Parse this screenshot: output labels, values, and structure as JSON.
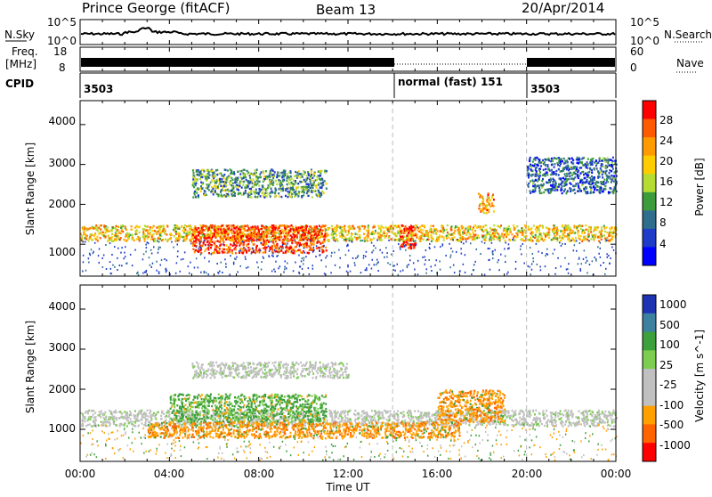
{
  "header": {
    "station": "Prince George (fitACF)",
    "beam": "Beam 13",
    "date": "20/Apr/2014"
  },
  "strips": {
    "nsky_label": "N.Sky",
    "nsearch_label": "N.Search",
    "nsky_ticks": [
      "10^5",
      "10^0"
    ],
    "nsearch_ticks": [
      "10^5",
      "10^0"
    ],
    "freq_label_1": "Freq.",
    "freq_label_2": "[MHz]",
    "freq_ticks": [
      "18",
      "8"
    ],
    "nave_label": "Nave",
    "nave_ticks": [
      "60",
      "0"
    ],
    "cpid_label": "CPID",
    "cpid_segments": [
      {
        "label": "3503",
        "start_hour": 0
      },
      {
        "label": "normal (fast) 151",
        "start_hour": 14
      },
      {
        "label": "3503",
        "start_hour": 20
      }
    ]
  },
  "chart_data": [
    {
      "type": "heatmap",
      "title": "",
      "ylabel": "Slant Range [km]",
      "xlabel": "Time UT",
      "xlim": [
        0,
        24
      ],
      "ylim": [
        200,
        4600
      ],
      "yticks": [
        "1000",
        "2000",
        "3000",
        "4000"
      ],
      "colorbar_label": "Power [dB]",
      "colorbar_ticks": [
        "28",
        "24",
        "20",
        "16",
        "12",
        "8",
        "4"
      ],
      "colorbar_colors": [
        "#ff0000",
        "#ff5a00",
        "#ff9a00",
        "#ffcc00",
        "#b4dc32",
        "#3c9c3c",
        "#2e6e8c",
        "#1e3cc8",
        "#0000ff"
      ],
      "dashed_markers_hours": [
        14,
        20
      ],
      "bands": [
        {
          "range_km": [
            1100,
            1500
          ],
          "hours": [
            0,
            24
          ],
          "level_db": 20
        },
        {
          "range_km": [
            800,
            1500
          ],
          "hours": [
            5,
            11
          ],
          "level_db": 28
        },
        {
          "range_km": [
            900,
            1500
          ],
          "hours": [
            14.3,
            15
          ],
          "level_db": 30
        },
        {
          "range_km": [
            1800,
            2300
          ],
          "hours": [
            17.8,
            18.5
          ],
          "level_db": 22
        },
        {
          "range_km": [
            2200,
            2900
          ],
          "hours": [
            5,
            11
          ],
          "level_db": 12
        },
        {
          "range_km": [
            2300,
            3200
          ],
          "hours": [
            20,
            24
          ],
          "level_db": 8
        }
      ]
    },
    {
      "type": "heatmap",
      "title": "",
      "ylabel": "Slant Range [km]",
      "xlabel": "Time UT",
      "xlim": [
        0,
        24
      ],
      "ylim": [
        200,
        4600
      ],
      "yticks": [
        "1000",
        "2000",
        "3000",
        "4000"
      ],
      "colorbar_label": "Velocity [m s^-1]",
      "colorbar_ticks": [
        "1000",
        "500",
        "100",
        "25",
        "-25",
        "-100",
        "-500",
        "-1000"
      ],
      "colorbar_colors": [
        "#1e32b4",
        "#3c82a0",
        "#3ca03c",
        "#7ccd50",
        "#c0c0c0",
        "#c0c0c0",
        "#ffa000",
        "#ff6400",
        "#ff0000"
      ],
      "dashed_markers_hours": [
        14,
        20
      ],
      "bands": [
        {
          "range_km": [
            1100,
            1500
          ],
          "hours": [
            0,
            24
          ],
          "velocity": 0
        },
        {
          "range_km": [
            1200,
            1900
          ],
          "hours": [
            4,
            11
          ],
          "velocity": 200
        },
        {
          "range_km": [
            800,
            1200
          ],
          "hours": [
            3,
            17
          ],
          "velocity": -300
        },
        {
          "range_km": [
            1200,
            2000
          ],
          "hours": [
            16,
            19
          ],
          "velocity": -400
        },
        {
          "range_km": [
            2300,
            2700
          ],
          "hours": [
            5,
            12
          ],
          "velocity": 0
        }
      ]
    }
  ],
  "time_axis": {
    "ticks": [
      "00:00",
      "04:00",
      "08:00",
      "12:00",
      "16:00",
      "20:00",
      "00:00"
    ],
    "label": "Time UT"
  }
}
